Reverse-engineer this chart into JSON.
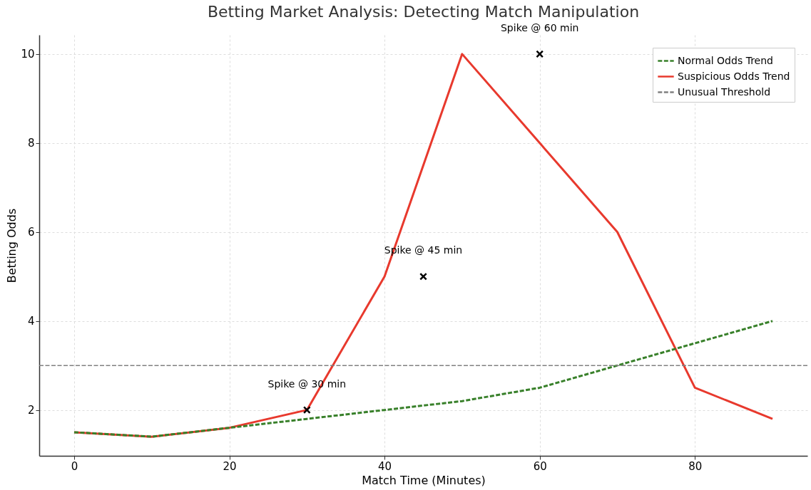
{
  "chart_data": {
    "type": "line",
    "title": "Betting Market Analysis: Detecting Match Manipulation",
    "xlabel": "Match Time (Minutes)",
    "ylabel": "Betting Odds",
    "x": [
      0,
      10,
      20,
      30,
      40,
      50,
      60,
      70,
      80,
      90
    ],
    "series": [
      {
        "name": "Normal Odds Trend",
        "color": "#38802a",
        "line_style": "dashed",
        "values": [
          1.5,
          1.4,
          1.6,
          1.8,
          2.0,
          2.2,
          2.5,
          3.0,
          3.5,
          4.0
        ]
      },
      {
        "name": "Suspicious Odds Trend",
        "color": "#e8392d",
        "line_style": "solid",
        "values": [
          1.5,
          1.4,
          1.6,
          2.0,
          5.0,
          10.0,
          8.0,
          6.0,
          2.5,
          1.8
        ]
      },
      {
        "type": "scatter",
        "color": "#000000",
        "marker": "cross",
        "x": [
          30,
          45,
          60
        ],
        "values": [
          2,
          5,
          10
        ]
      }
    ],
    "annotations": [
      {
        "text": "Spike @ 30 min",
        "x": 30,
        "y": 2
      },
      {
        "text": "Spike @ 45 min",
        "x": 45,
        "y": 5
      },
      {
        "text": "Spike @ 60 min",
        "x": 60,
        "y": 10
      }
    ],
    "ref_lines": [
      {
        "axis": "y",
        "value": 3,
        "label": "Unusual Threshold",
        "color": "#808080",
        "line_style": "dashed"
      }
    ],
    "xlim": [
      -4.5,
      94.5
    ],
    "ylim": [
      0.97,
      10.43
    ],
    "xticks": [
      0,
      20,
      40,
      60,
      80
    ],
    "yticks": [
      2,
      4,
      6,
      8,
      10
    ],
    "grid": true,
    "legend": "top right",
    "marker": "none"
  }
}
